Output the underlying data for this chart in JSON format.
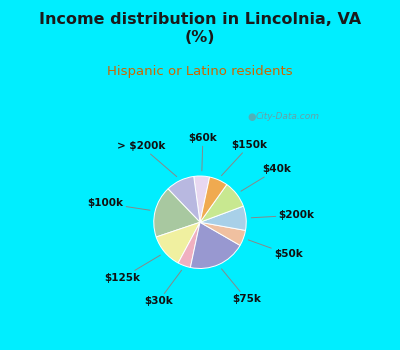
{
  "title": "Income distribution in Lincolnia, VA\n(%)",
  "subtitle": "Hispanic or Latino residents",
  "title_color": "#1a1a1a",
  "subtitle_color": "#cc6600",
  "bg_color": "#00eeff",
  "chart_bg_color": "#e8f4ee",
  "watermark": "City-Data.com",
  "labels": [
    "$60k",
    "> $200k",
    "$100k",
    "$125k",
    "$30k",
    "$75k",
    "$50k",
    "$200k",
    "$40k",
    "$150k"
  ],
  "values": [
    5.5,
    10.0,
    18.0,
    12.0,
    4.5,
    20.0,
    5.5,
    8.5,
    9.5,
    6.5
  ],
  "colors": [
    "#e8d8f0",
    "#b8b8e0",
    "#a8c8a0",
    "#f0f0a0",
    "#f0b0c0",
    "#9898d0",
    "#f0c0a0",
    "#a8d0e8",
    "#c8e890",
    "#f0aa50"
  ],
  "startangle": 78,
  "label_fontsize": 7.5,
  "title_fontsize": 11.5,
  "subtitle_fontsize": 9.5,
  "figsize": [
    4.0,
    3.5
  ],
  "dpi": 100
}
